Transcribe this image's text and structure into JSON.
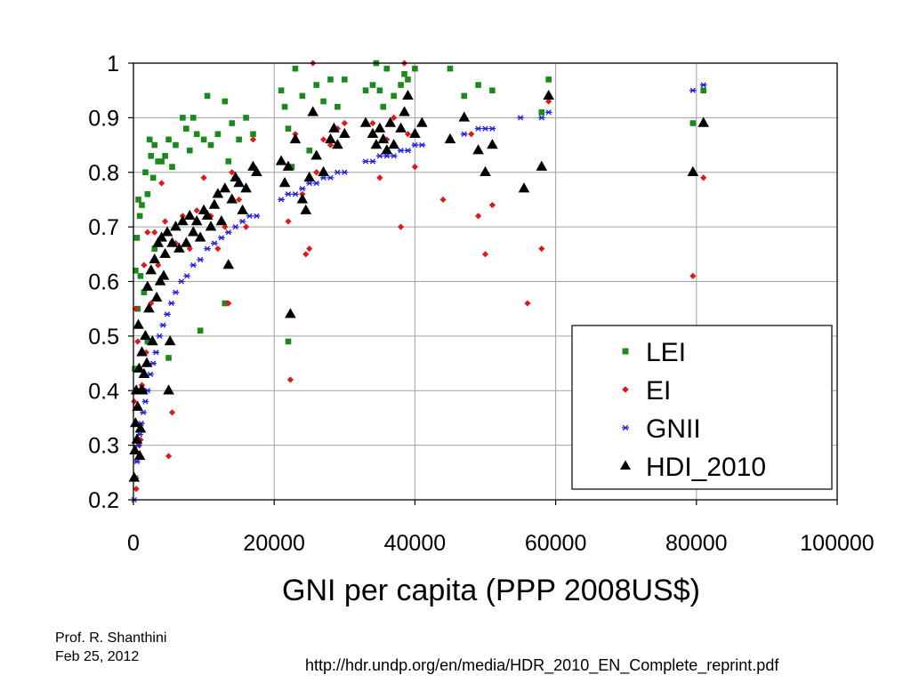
{
  "footer": {
    "author": "Prof. R. Shanthini",
    "date": "Feb 25, 2012",
    "source": "http://hdr.undp.org/en/media/HDR_2010_EN_Complete_reprint.pdf"
  },
  "chart_data": {
    "type": "scatter",
    "title": "",
    "xlabel": "GNI per capita (PPP 2008US$)",
    "ylabel": "",
    "xlim": [
      0,
      100000
    ],
    "ylim": [
      0.2,
      1
    ],
    "xticks": [
      "0",
      "20000",
      "40000",
      "60000",
      "80000",
      "100000"
    ],
    "yticks": [
      "0.2",
      "0.3",
      "0.4",
      "0.5",
      "0.6",
      "0.7",
      "0.8",
      "0.9",
      "1"
    ],
    "x_tick_values": [
      0,
      20000,
      40000,
      60000,
      80000,
      100000
    ],
    "y_tick_values": [
      0.2,
      0.3,
      0.4,
      0.5,
      0.6,
      0.7,
      0.8,
      0.9,
      1
    ],
    "grid": {
      "vertical": true,
      "horizontal": true
    },
    "legend": {
      "position": "bottom-right"
    },
    "series": [
      {
        "name": "LEI",
        "marker": "square",
        "color": "#1a8a1a",
        "points": [
          [
            200,
            0.44
          ],
          [
            300,
            0.62
          ],
          [
            500,
            0.68
          ],
          [
            600,
            0.55
          ],
          [
            700,
            0.75
          ],
          [
            900,
            0.72
          ],
          [
            1000,
            0.61
          ],
          [
            1200,
            0.74
          ],
          [
            1500,
            0.58
          ],
          [
            1700,
            0.8
          ],
          [
            2000,
            0.76
          ],
          [
            2300,
            0.86
          ],
          [
            2500,
            0.83
          ],
          [
            2800,
            0.79
          ],
          [
            3000,
            0.85
          ],
          [
            3500,
            0.82
          ],
          [
            4000,
            0.82
          ],
          [
            4500,
            0.83
          ],
          [
            5000,
            0.86
          ],
          [
            5500,
            0.81
          ],
          [
            6000,
            0.85
          ],
          [
            7000,
            0.9
          ],
          [
            7500,
            0.88
          ],
          [
            8000,
            0.84
          ],
          [
            8500,
            0.9
          ],
          [
            9000,
            0.87
          ],
          [
            10000,
            0.86
          ],
          [
            10500,
            0.94
          ],
          [
            11000,
            0.85
          ],
          [
            12000,
            0.87
          ],
          [
            13000,
            0.93
          ],
          [
            13500,
            0.82
          ],
          [
            14000,
            0.89
          ],
          [
            15000,
            0.86
          ],
          [
            16000,
            0.9
          ],
          [
            17000,
            0.87
          ],
          [
            3000,
            0.66
          ],
          [
            5000,
            0.46
          ],
          [
            2000,
            0.49
          ],
          [
            9500,
            0.51
          ],
          [
            13000,
            0.56
          ],
          [
            21000,
            0.95
          ],
          [
            21500,
            0.92
          ],
          [
            22000,
            0.88
          ],
          [
            22500,
            0.81
          ],
          [
            23000,
            0.99
          ],
          [
            24000,
            0.94
          ],
          [
            25000,
            0.84
          ],
          [
            26000,
            0.96
          ],
          [
            27000,
            0.93
          ],
          [
            28000,
            0.97
          ],
          [
            29000,
            0.92
          ],
          [
            30000,
            0.97
          ],
          [
            33000,
            0.95
          ],
          [
            34000,
            0.96
          ],
          [
            34500,
            1.0
          ],
          [
            35000,
            0.95
          ],
          [
            35500,
            0.92
          ],
          [
            36000,
            0.99
          ],
          [
            37000,
            0.94
          ],
          [
            38000,
            0.96
          ],
          [
            38500,
            0.98
          ],
          [
            39000,
            0.97
          ],
          [
            40000,
            0.99
          ],
          [
            22000,
            0.49
          ],
          [
            45000,
            0.99
          ],
          [
            47000,
            0.94
          ],
          [
            49000,
            0.96
          ],
          [
            51000,
            0.95
          ],
          [
            58000,
            0.91
          ],
          [
            59000,
            0.97
          ],
          [
            79500,
            0.89
          ],
          [
            81000,
            0.95
          ]
        ]
      },
      {
        "name": "EI",
        "marker": "diamond",
        "color": "#e01818",
        "points": [
          [
            100,
            0.38
          ],
          [
            300,
            0.55
          ],
          [
            400,
            0.22
          ],
          [
            600,
            0.49
          ],
          [
            800,
            0.3
          ],
          [
            1000,
            0.31
          ],
          [
            1200,
            0.41
          ],
          [
            1500,
            0.63
          ],
          [
            1800,
            0.47
          ],
          [
            2000,
            0.69
          ],
          [
            2500,
            0.56
          ],
          [
            3000,
            0.69
          ],
          [
            3500,
            0.63
          ],
          [
            4000,
            0.78
          ],
          [
            4500,
            0.71
          ],
          [
            5000,
            0.28
          ],
          [
            5500,
            0.36
          ],
          [
            6000,
            0.67
          ],
          [
            7000,
            0.72
          ],
          [
            8000,
            0.66
          ],
          [
            9000,
            0.73
          ],
          [
            10000,
            0.79
          ],
          [
            11000,
            0.72
          ],
          [
            12000,
            0.66
          ],
          [
            13000,
            0.7
          ],
          [
            13500,
            0.56
          ],
          [
            14000,
            0.8
          ],
          [
            15000,
            0.75
          ],
          [
            16000,
            0.7
          ],
          [
            17000,
            0.86
          ],
          [
            21000,
            0.82
          ],
          [
            22000,
            0.71
          ],
          [
            22300,
            0.42
          ],
          [
            23000,
            0.87
          ],
          [
            24000,
            0.76
          ],
          [
            24500,
            0.65
          ],
          [
            25000,
            0.66
          ],
          [
            25500,
            1.0
          ],
          [
            26000,
            0.8
          ],
          [
            27000,
            0.86
          ],
          [
            28000,
            0.85
          ],
          [
            29000,
            0.88
          ],
          [
            30000,
            0.89
          ],
          [
            34000,
            0.89
          ],
          [
            35000,
            0.79
          ],
          [
            36000,
            0.86
          ],
          [
            37000,
            0.9
          ],
          [
            38000,
            0.7
          ],
          [
            38500,
            1.0
          ],
          [
            39000,
            0.87
          ],
          [
            40000,
            0.81
          ],
          [
            44000,
            0.75
          ],
          [
            48000,
            0.87
          ],
          [
            49000,
            0.72
          ],
          [
            50000,
            0.65
          ],
          [
            51000,
            0.74
          ],
          [
            56000,
            0.56
          ],
          [
            58000,
            0.66
          ],
          [
            59000,
            0.93
          ],
          [
            79500,
            0.61
          ],
          [
            81000,
            0.79
          ]
        ]
      },
      {
        "name": "GNII",
        "marker": "star",
        "color": "#1f1fe0",
        "points": [
          [
            100,
            0.2
          ],
          [
            300,
            0.24
          ],
          [
            500,
            0.27
          ],
          [
            700,
            0.3
          ],
          [
            900,
            0.32
          ],
          [
            1100,
            0.34
          ],
          [
            1400,
            0.36
          ],
          [
            1700,
            0.38
          ],
          [
            2000,
            0.4
          ],
          [
            2400,
            0.43
          ],
          [
            2800,
            0.45
          ],
          [
            3200,
            0.47
          ],
          [
            3700,
            0.5
          ],
          [
            4200,
            0.52
          ],
          [
            4800,
            0.54
          ],
          [
            5400,
            0.56
          ],
          [
            6000,
            0.58
          ],
          [
            6800,
            0.6
          ],
          [
            7600,
            0.61
          ],
          [
            8500,
            0.63
          ],
          [
            9500,
            0.64
          ],
          [
            10500,
            0.66
          ],
          [
            11500,
            0.67
          ],
          [
            12500,
            0.68
          ],
          [
            13500,
            0.69
          ],
          [
            14500,
            0.7
          ],
          [
            15500,
            0.71
          ],
          [
            16500,
            0.72
          ],
          [
            17500,
            0.72
          ],
          [
            21000,
            0.75
          ],
          [
            22000,
            0.76
          ],
          [
            23000,
            0.76
          ],
          [
            24000,
            0.77
          ],
          [
            25000,
            0.78
          ],
          [
            26000,
            0.78
          ],
          [
            27000,
            0.79
          ],
          [
            28000,
            0.79
          ],
          [
            29000,
            0.8
          ],
          [
            30000,
            0.8
          ],
          [
            33000,
            0.82
          ],
          [
            34000,
            0.82
          ],
          [
            35000,
            0.83
          ],
          [
            36000,
            0.83
          ],
          [
            37000,
            0.83
          ],
          [
            38000,
            0.84
          ],
          [
            39000,
            0.84
          ],
          [
            40000,
            0.85
          ],
          [
            41000,
            0.85
          ],
          [
            45000,
            0.86
          ],
          [
            47000,
            0.87
          ],
          [
            49000,
            0.88
          ],
          [
            50000,
            0.88
          ],
          [
            51000,
            0.88
          ],
          [
            55000,
            0.9
          ],
          [
            58000,
            0.9
          ],
          [
            59000,
            0.91
          ],
          [
            79500,
            0.95
          ],
          [
            81000,
            0.96
          ]
        ]
      },
      {
        "name": "HDI_2010",
        "marker": "triangle",
        "color": "#000000",
        "points": [
          [
            100,
            0.24
          ],
          [
            200,
            0.29
          ],
          [
            300,
            0.34
          ],
          [
            400,
            0.4
          ],
          [
            500,
            0.31
          ],
          [
            600,
            0.37
          ],
          [
            700,
            0.52
          ],
          [
            800,
            0.44
          ],
          [
            900,
            0.28
          ],
          [
            1000,
            0.33
          ],
          [
            1100,
            0.4
          ],
          [
            1200,
            0.47
          ],
          [
            1300,
            0.4
          ],
          [
            1500,
            0.43
          ],
          [
            1700,
            0.5
          ],
          [
            1900,
            0.45
          ],
          [
            2000,
            0.59
          ],
          [
            2200,
            0.55
          ],
          [
            2500,
            0.62
          ],
          [
            2700,
            0.49
          ],
          [
            3000,
            0.64
          ],
          [
            3300,
            0.57
          ],
          [
            3500,
            0.67
          ],
          [
            3800,
            0.6
          ],
          [
            4000,
            0.68
          ],
          [
            4300,
            0.61
          ],
          [
            4500,
            0.65
          ],
          [
            4800,
            0.69
          ],
          [
            5000,
            0.4
          ],
          [
            5200,
            0.49
          ],
          [
            5500,
            0.67
          ],
          [
            6000,
            0.7
          ],
          [
            6500,
            0.66
          ],
          [
            7000,
            0.71
          ],
          [
            7500,
            0.67
          ],
          [
            8000,
            0.72
          ],
          [
            8500,
            0.69
          ],
          [
            9000,
            0.71
          ],
          [
            9500,
            0.68
          ],
          [
            10000,
            0.73
          ],
          [
            10500,
            0.72
          ],
          [
            11000,
            0.7
          ],
          [
            11500,
            0.74
          ],
          [
            12000,
            0.76
          ],
          [
            12500,
            0.71
          ],
          [
            13000,
            0.77
          ],
          [
            13500,
            0.63
          ],
          [
            14000,
            0.75
          ],
          [
            14500,
            0.79
          ],
          [
            15000,
            0.78
          ],
          [
            15500,
            0.73
          ],
          [
            16000,
            0.77
          ],
          [
            17000,
            0.81
          ],
          [
            17500,
            0.8
          ],
          [
            21000,
            0.82
          ],
          [
            21500,
            0.78
          ],
          [
            22000,
            0.81
          ],
          [
            22300,
            0.54
          ],
          [
            23000,
            0.86
          ],
          [
            24000,
            0.75
          ],
          [
            24500,
            0.73
          ],
          [
            25000,
            0.79
          ],
          [
            25500,
            0.91
          ],
          [
            26000,
            0.83
          ],
          [
            27000,
            0.8
          ],
          [
            28000,
            0.86
          ],
          [
            28500,
            0.88
          ],
          [
            29000,
            0.85
          ],
          [
            30000,
            0.87
          ],
          [
            33000,
            0.89
          ],
          [
            34000,
            0.87
          ],
          [
            34500,
            0.85
          ],
          [
            35000,
            0.88
          ],
          [
            35500,
            0.86
          ],
          [
            36000,
            0.84
          ],
          [
            36500,
            0.89
          ],
          [
            37000,
            0.85
          ],
          [
            38000,
            0.88
          ],
          [
            38500,
            0.91
          ],
          [
            39000,
            0.94
          ],
          [
            40000,
            0.87
          ],
          [
            41000,
            0.89
          ],
          [
            45000,
            0.86
          ],
          [
            47000,
            0.9
          ],
          [
            49000,
            0.84
          ],
          [
            50000,
            0.8
          ],
          [
            51000,
            0.85
          ],
          [
            55500,
            0.77
          ],
          [
            58000,
            0.81
          ],
          [
            59000,
            0.94
          ],
          [
            79500,
            0.8
          ],
          [
            81000,
            0.89
          ]
        ]
      }
    ]
  }
}
